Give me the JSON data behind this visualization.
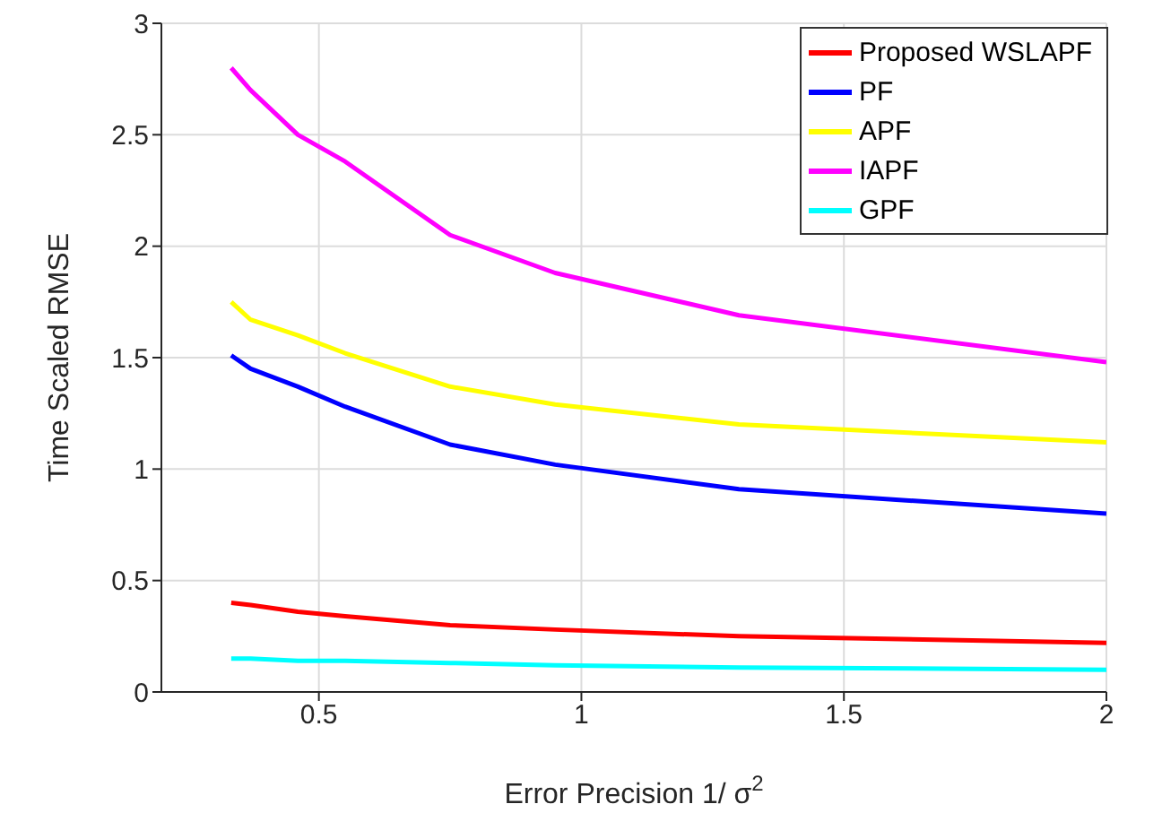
{
  "chart_data": {
    "type": "line",
    "xlabel": "Error Precision 1/ σ$^{2}$",
    "ylabel": "Time Scaled RMSE",
    "x": [
      0.333,
      0.37,
      0.46,
      0.55,
      0.75,
      0.95,
      1.3,
      2
    ],
    "series": [
      {
        "name": "Proposed WSLAPF",
        "color": "#ff0000",
        "values": [
          0.4,
          0.39,
          0.36,
          0.34,
          0.3,
          0.28,
          0.25,
          0.22
        ]
      },
      {
        "name": "PF",
        "color": "#0000ff",
        "values": [
          1.51,
          1.45,
          1.37,
          1.28,
          1.11,
          1.02,
          0.91,
          0.8
        ]
      },
      {
        "name": "APF",
        "color": "#ffff00",
        "values": [
          1.75,
          1.67,
          1.6,
          1.52,
          1.37,
          1.29,
          1.2,
          1.12
        ]
      },
      {
        "name": "IAPF",
        "color": "#ff00ff",
        "values": [
          2.8,
          2.7,
          2.5,
          2.38,
          2.05,
          1.88,
          1.69,
          1.48
        ]
      },
      {
        "name": "GPF",
        "color": "#00ffff",
        "values": [
          0.15,
          0.15,
          0.14,
          0.14,
          0.13,
          0.12,
          0.11,
          0.1
        ]
      }
    ],
    "xlim": [
      0.2,
      2
    ],
    "xticks": [
      0.5,
      1,
      1.5,
      2
    ],
    "ylim": [
      0,
      3
    ],
    "yticks": [
      0,
      0.5,
      1,
      1.5,
      2,
      2.5,
      3
    ],
    "grid": true,
    "legend": "top right",
    "marker": "none",
    "line_style": "solid"
  }
}
